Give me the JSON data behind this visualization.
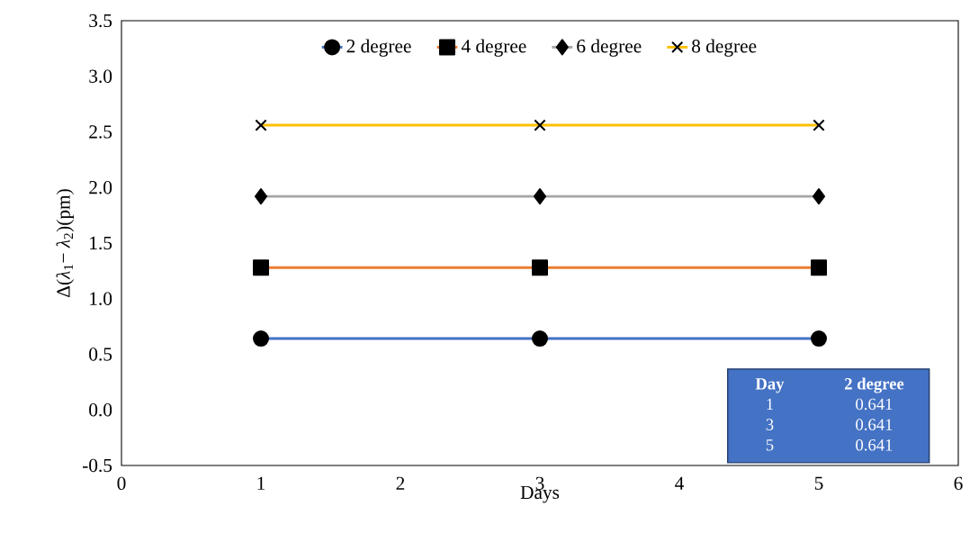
{
  "chart_data": {
    "type": "line",
    "xlabel": "Days",
    "ylabel": "Δ(*λ*$_{1}$− *λ*$_{2}$)(pm)",
    "xlim": [
      0,
      6
    ],
    "xticks": [
      0,
      1,
      2,
      3,
      4,
      5,
      6
    ],
    "ylim": [
      -0.5,
      3.5
    ],
    "yticks": [
      -0.5,
      {
        "value": 0,
        "label": "0.0"
      },
      0.5,
      {
        "value": 1,
        "label": "1.0"
      },
      1.5,
      {
        "value": 2,
        "label": "2.0"
      },
      2.5,
      {
        "value": 3,
        "label": "3.0"
      },
      3.5
    ],
    "grid": false,
    "legend": "top",
    "line_style": "solid",
    "x": [
      1,
      3,
      5
    ],
    "series": [
      {
        "name": "2 degree",
        "color": "#4472c4",
        "marker": "circle",
        "values": [
          0.641,
          0.641,
          0.641
        ]
      },
      {
        "name": "4 degree",
        "color": "#ed7d31",
        "marker": "square",
        "values": [
          1.28,
          1.28,
          1.28
        ]
      },
      {
        "name": "6 degree",
        "color": "#a5a5a5",
        "marker": "diamond",
        "values": [
          1.92,
          1.92,
          1.92
        ]
      },
      {
        "name": "8 degree",
        "color": "#ffc000",
        "marker": "cross",
        "values": [
          2.56,
          2.56,
          2.56
        ]
      }
    ],
    "annotations": [
      "Day",
      "2 degree",
      "1",
      "0.641",
      "3",
      "0.641",
      "5",
      "0.641"
    ]
  }
}
